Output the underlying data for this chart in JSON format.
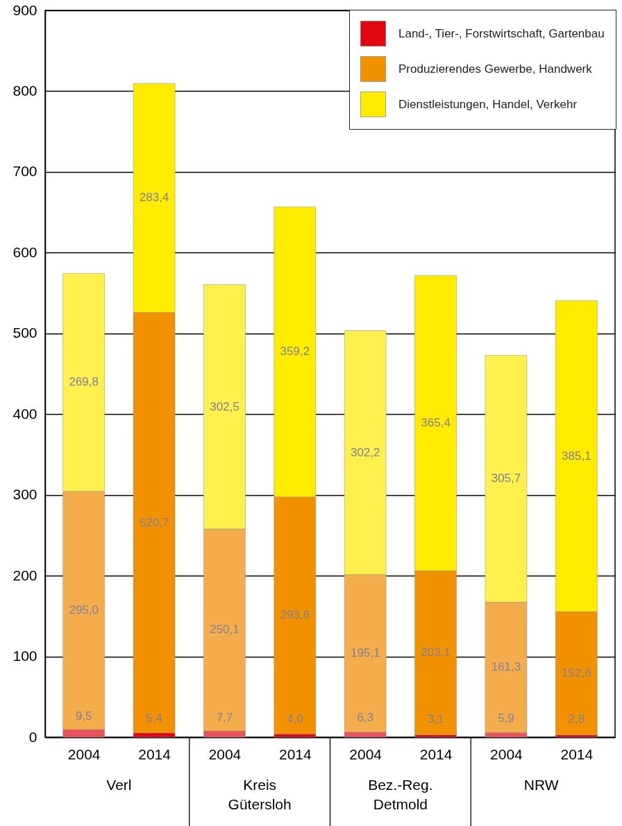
{
  "chart_data": {
    "type": "bar",
    "stacked": true,
    "categories": [
      "2004",
      "2014",
      "2004",
      "2014",
      "2004",
      "2014",
      "2004",
      "2014"
    ],
    "series": [
      {
        "name": "Land-, Tier-, Forstwirtschaft, Gartenbau",
        "color": "#e30613",
        "colors": [
          "#e9525c",
          "#e30613",
          "#e9525c",
          "#e30613",
          "#e9525c",
          "#e30613",
          "#e9525c",
          "#e30613"
        ],
        "values": [
          9.5,
          5.4,
          7.7,
          4.0,
          6.3,
          3.1,
          5.9,
          2.8
        ],
        "value_labels": [
          "9,5",
          "5,4",
          "7,7",
          "4,0",
          "6,3",
          "3,1",
          "5,9",
          "2,8"
        ]
      },
      {
        "name": "Produzierendes Gewerbe, Handwerk",
        "color": "#f39200",
        "colors": [
          "#f5ad4c",
          "#f39200",
          "#f5ad4c",
          "#f39200",
          "#f5ad4c",
          "#f39200",
          "#f5ad4c",
          "#f39200"
        ],
        "values": [
          295.0,
          520.7,
          250.1,
          293.6,
          195.1,
          203.1,
          161.3,
          152.6
        ],
        "value_labels": [
          "295,0",
          "520,7",
          "250,1",
          "293,6",
          "195,1",
          "203,1",
          "161,3",
          "152,6"
        ]
      },
      {
        "name": "Dienstleistungen, Handel, Verkehr",
        "color": "#ffec00",
        "colors": [
          "#fff04d",
          "#ffec00",
          "#fff04d",
          "#ffec00",
          "#fff04d",
          "#ffec00",
          "#fff04d",
          "#ffec00"
        ],
        "values": [
          269.8,
          283.4,
          302.5,
          359.2,
          302.2,
          365.4,
          305.7,
          385.1
        ],
        "value_labels": [
          "269,8",
          "283,4",
          "302,5",
          "359,2",
          "302,2",
          "365,4",
          "305,7",
          "385,1"
        ]
      }
    ],
    "annotations": [
      "Verl",
      "Kreis Gütersloh",
      "Bez.-Reg. Detmold",
      "NRW"
    ],
    "ylim": [
      0,
      900
    ],
    "yticks": [
      0,
      100,
      200,
      300,
      400,
      500,
      600,
      700,
      800,
      900
    ],
    "grid": "y",
    "legend": "top right"
  }
}
